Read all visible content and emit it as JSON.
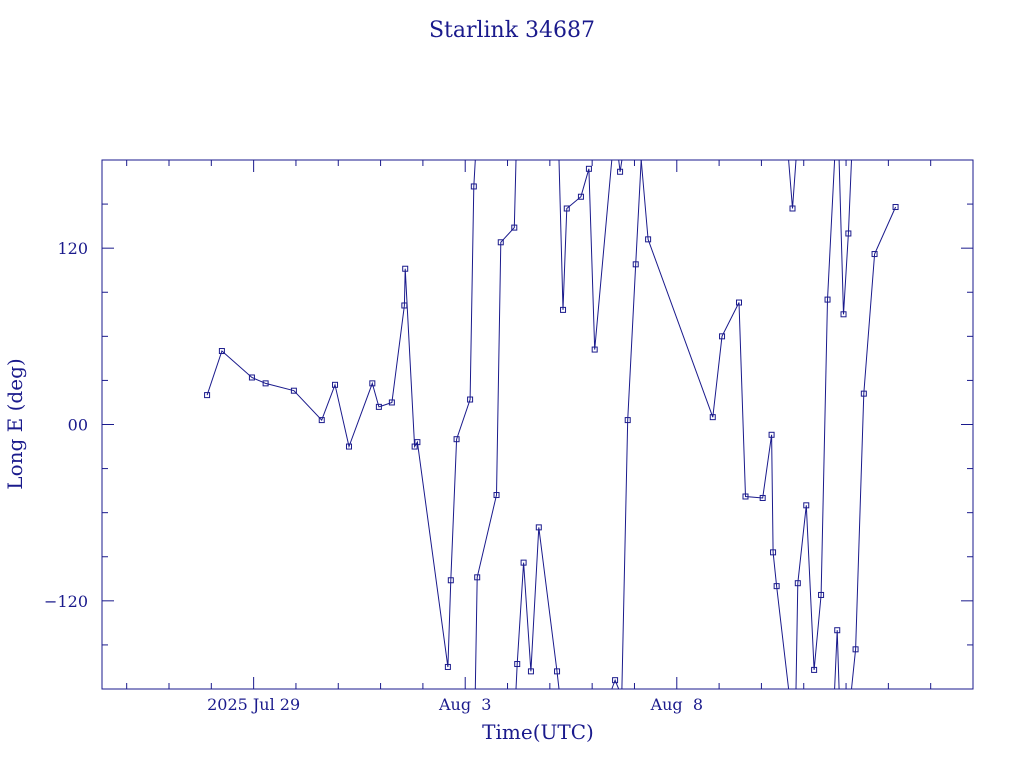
{
  "chart_data": {
    "type": "line",
    "title": "Starlink 34687",
    "xlabel": "Time(UTC)",
    "ylabel": "Long E (deg)",
    "xlim": [
      "2025-07-25T10:00",
      "2025-08-15T00:00"
    ],
    "ylim": [
      -180,
      180
    ],
    "yticks": [
      -120,
      0,
      120
    ],
    "ytick_labels": [
      "−120",
      "00",
      "120"
    ],
    "xticks": [
      "2025-07-29T00:00",
      "2025-08-03T00:00",
      "2025-08-08T00:00"
    ],
    "xtick_labels": [
      "2025 Jul 29",
      "Aug  3",
      "Aug  8"
    ],
    "grid": false,
    "line_color": "#1a1a8c",
    "marker": "square",
    "series": [
      {
        "values": [
          [
            "2025-07-27T21:36",
            20
          ],
          [
            "2025-07-28T06:00",
            50
          ],
          [
            "2025-07-28T23:02",
            32
          ],
          [
            "2025-07-29T06:48",
            28
          ],
          [
            "2025-07-29T22:50",
            23
          ],
          [
            "2025-07-30T14:38",
            3
          ],
          [
            "2025-07-30T22:10",
            27
          ],
          [
            "2025-07-31T06:05",
            -15
          ],
          [
            "2025-07-31T19:19",
            28
          ],
          [
            "2025-07-31T23:02",
            12
          ],
          [
            "2025-08-01T06:24",
            15
          ],
          [
            "2025-08-01T13:29",
            81
          ],
          [
            "2025-08-01T13:58",
            106
          ],
          [
            "2025-08-01T19:19",
            -15
          ],
          [
            "2025-08-01T20:53",
            -12
          ],
          [
            "2025-08-02T14:10",
            -165
          ],
          [
            "2025-08-02T15:50",
            -106
          ],
          [
            "2025-08-02T19:06",
            -10
          ],
          [
            "2025-08-03T02:46",
            17
          ],
          [
            "2025-08-03T04:53",
            162
          ],
          [
            "2025-08-03T05:43",
            180
          ]
        ]
      },
      {
        "values": [
          [
            "2025-08-03T05:43",
            -180
          ],
          [
            "2025-08-03T06:48",
            -104
          ],
          [
            "2025-08-03T17:46",
            -48
          ],
          [
            "2025-08-03T20:10",
            124
          ],
          [
            "2025-08-04T03:50",
            134
          ],
          [
            "2025-08-04T04:48",
            180
          ]
        ]
      },
      {
        "values": [
          [
            "2025-08-04T04:48",
            -180
          ],
          [
            "2025-08-04T05:30",
            -163
          ],
          [
            "2025-08-04T09:07",
            -94
          ],
          [
            "2025-08-04T13:17",
            -168
          ],
          [
            "2025-08-04T17:44",
            -70
          ],
          [
            "2025-08-05T04:05",
            -168
          ],
          [
            "2025-08-05T05:10",
            -180
          ]
        ]
      },
      {
        "values": [
          [
            "2025-08-05T05:10",
            180
          ],
          [
            "2025-08-05T07:29",
            78
          ],
          [
            "2025-08-05T09:36",
            147
          ],
          [
            "2025-08-05T17:38",
            155
          ],
          [
            "2025-08-05T22:10",
            174
          ],
          [
            "2025-08-06T01:26",
            51
          ],
          [
            "2025-08-06T11:10",
            180
          ]
        ]
      },
      {
        "values": [
          [
            "2025-08-06T11:10",
            -180
          ],
          [
            "2025-08-06T13:00",
            -174
          ],
          [
            "2025-08-06T15:02",
            -180
          ]
        ]
      },
      {
        "values": [
          [
            "2025-08-06T15:02",
            180
          ],
          [
            "2025-08-06T15:50",
            172
          ],
          [
            "2025-08-06T16:53",
            180
          ]
        ]
      },
      {
        "values": [
          [
            "2025-08-06T16:53",
            -180
          ],
          [
            "2025-08-06T20:10",
            3
          ],
          [
            "2025-08-07T00:43",
            109
          ],
          [
            "2025-08-07T03:50",
            180
          ]
        ]
      },
      {
        "values": [
          [
            "2025-08-07T03:50",
            180
          ],
          [
            "2025-08-07T07:44",
            126
          ],
          [
            "2025-08-08T20:24",
            5
          ],
          [
            "2025-08-09T01:40",
            60
          ],
          [
            "2025-08-09T11:17",
            83
          ],
          [
            "2025-08-09T14:58",
            -49
          ],
          [
            "2025-08-10T00:43",
            -50
          ],
          [
            "2025-08-10T05:46",
            -7
          ],
          [
            "2025-08-10T06:36",
            -87
          ],
          [
            "2025-08-10T08:38",
            -110
          ],
          [
            "2025-08-10T15:26",
            -180
          ]
        ]
      },
      {
        "values": [
          [
            "2025-08-10T15:26",
            180
          ],
          [
            "2025-08-10T17:38",
            147
          ],
          [
            "2025-08-10T19:38",
            180
          ]
        ]
      },
      {
        "values": [
          [
            "2025-08-10T19:38",
            -180
          ],
          [
            "2025-08-10T20:38",
            -108
          ],
          [
            "2025-08-11T01:26",
            -55
          ],
          [
            "2025-08-11T05:53",
            -167
          ],
          [
            "2025-08-11T09:50",
            -116
          ],
          [
            "2025-08-11T13:30",
            85
          ],
          [
            "2025-08-11T17:31",
            180
          ]
        ]
      },
      {
        "values": [
          [
            "2025-08-11T17:31",
            -180
          ],
          [
            "2025-08-11T19:00",
            -140
          ],
          [
            "2025-08-11T20:02",
            -180
          ]
        ]
      },
      {
        "values": [
          [
            "2025-08-11T20:02",
            180
          ],
          [
            "2025-08-11T22:34",
            75
          ],
          [
            "2025-08-12T01:19",
            130
          ],
          [
            "2025-08-12T03:07",
            180
          ]
        ]
      },
      {
        "values": [
          [
            "2025-08-12T03:07",
            -180
          ],
          [
            "2025-08-12T05:24",
            -153
          ],
          [
            "2025-08-12T10:05",
            21
          ],
          [
            "2025-08-12T16:10",
            116
          ],
          [
            "2025-08-13T04:05",
            148
          ]
        ]
      }
    ]
  }
}
